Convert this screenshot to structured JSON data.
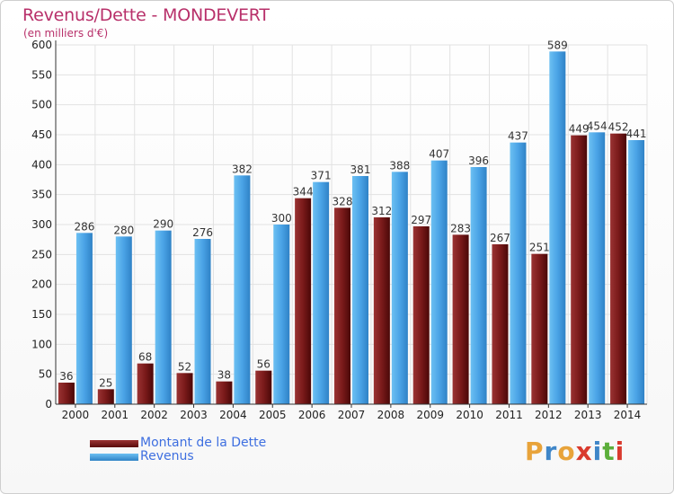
{
  "chart_data": {
    "type": "bar",
    "title": "Revenus/Dette - MONDEVERT",
    "subtitle": "(en milliers d'€)",
    "xlabel": "",
    "ylabel": "",
    "ylim": [
      0,
      600
    ],
    "yticks": [
      0,
      50,
      100,
      150,
      200,
      250,
      300,
      350,
      400,
      450,
      500,
      550,
      600
    ],
    "grid": true,
    "categories": [
      "2000",
      "2001",
      "2002",
      "2003",
      "2004",
      "2005",
      "2006",
      "2007",
      "2008",
      "2009",
      "2010",
      "2011",
      "2012",
      "2013",
      "2014"
    ],
    "series": [
      {
        "name": "Montant de la Dette",
        "color": "#7a1a1a",
        "values": [
          36,
          25,
          68,
          52,
          38,
          56,
          344,
          328,
          312,
          297,
          283,
          267,
          251,
          449,
          452
        ]
      },
      {
        "name": "Revenus",
        "color": "#4aa3e6",
        "values": [
          286,
          280,
          290,
          276,
          382,
          300,
          371,
          381,
          388,
          407,
          396,
          437,
          589,
          454,
          441
        ]
      }
    ],
    "legend_position": "bottom-left"
  },
  "logo": {
    "text": "Proxiti"
  }
}
